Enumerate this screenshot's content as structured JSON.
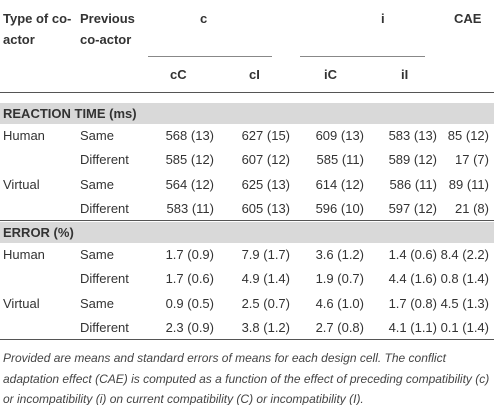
{
  "header": {
    "type": "Type of co-actor",
    "previous": "Previous co-actor",
    "groups": [
      "c",
      "i",
      "CAE"
    ],
    "subcolumns": [
      "cC",
      "cI",
      "iC",
      "iI"
    ]
  },
  "sections": [
    {
      "title": "REACTION TIME (ms)",
      "rows": [
        {
          "type": "Human",
          "previous": "Same",
          "cells": [
            "568 (13)",
            "627 (15)",
            "609 (13)",
            "583 (13)",
            "85 (12)"
          ]
        },
        {
          "previous": "Different",
          "cells": [
            "585 (12)",
            "607 (12)",
            "585 (11)",
            "589 (12)",
            "17 (7)"
          ]
        },
        {
          "type": "Virtual",
          "previous": "Same",
          "cells": [
            "564 (12)",
            "625 (13)",
            "614 (12)",
            "586 (11)",
            "89 (11)"
          ]
        },
        {
          "previous": "Different",
          "cells": [
            "583 (11)",
            "605 (13)",
            "596 (10)",
            "597 (12)",
            "21 (8)"
          ]
        }
      ]
    },
    {
      "title": "ERROR (%)",
      "rows": [
        {
          "type": "Human",
          "previous": "Same",
          "cells": [
            "1.7 (0.9)",
            "7.9 (1.7)",
            "3.6 (1.2)",
            "1.4 (0.6)",
            "8.4 (2.2)"
          ]
        },
        {
          "previous": "Different",
          "cells": [
            "1.7 (0.6)",
            "4.9 (1.4)",
            "1.9 (0.7)",
            "4.4 (1.6)",
            "0.8 (1.4)"
          ]
        },
        {
          "type": "Virtual",
          "previous": "Same",
          "cells": [
            "0.9 (0.5)",
            "2.5 (0.7)",
            "4.6 (1.0)",
            "1.7 (0.8)",
            "4.5 (1.3)"
          ]
        },
        {
          "previous": "Different",
          "cells": [
            "2.3 (0.9)",
            "3.8 (1.2)",
            "2.7 (0.8)",
            "4.1 (1.1)",
            "0.1 (1.4)"
          ]
        }
      ]
    }
  ],
  "footnote": "Provided are means and standard errors of means for each design cell. The conflict adaptation effect (CAE) is computed as a function of the effect of preceding compatibility (c) or incompatibility (i) on current compatibility (C) or incompatibility (I)."
}
